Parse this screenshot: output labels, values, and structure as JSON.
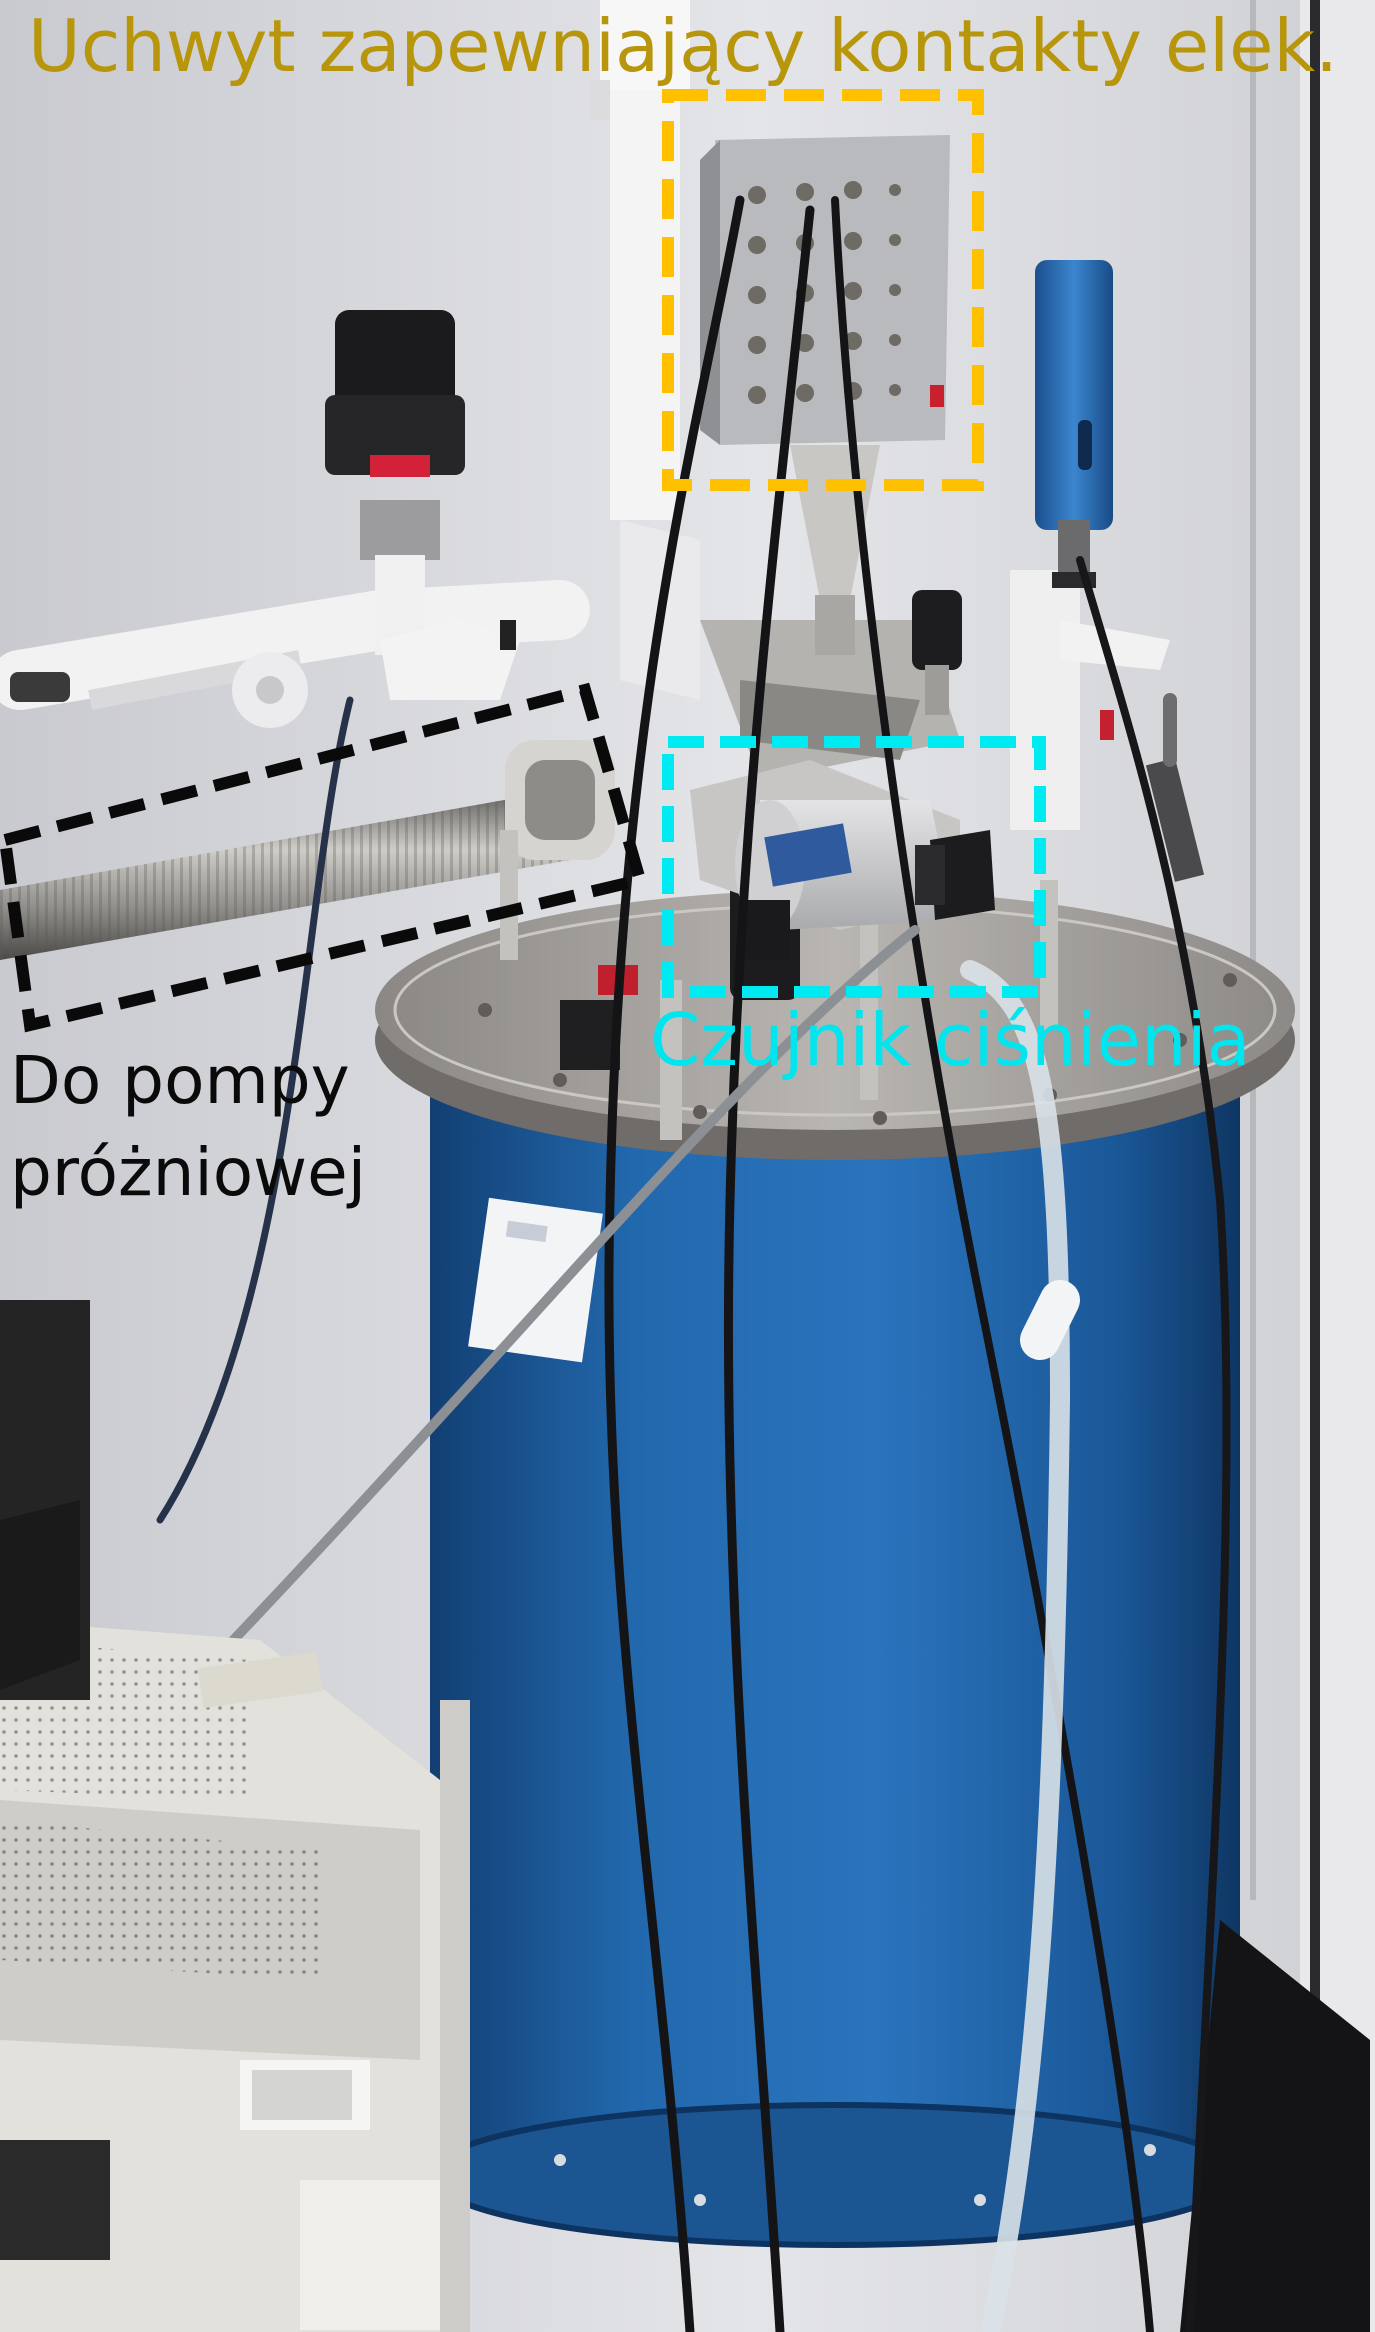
{
  "annotations": {
    "holder": {
      "text": "Uchwyt zapewniający kontakty elek.",
      "color": "#b8960c"
    },
    "sensor": {
      "text": "Czujnik ciśnienia",
      "color": "#00e5ee"
    },
    "pump": {
      "text": "Do pompy\npróżniowej",
      "color": "#0a0a0a"
    }
  },
  "colors": {
    "dewar_blue": "#1e63a8",
    "wall": "#dcdde2",
    "flange_steel": "#a8a6a4",
    "holder_box": "#bbbcbf"
  }
}
